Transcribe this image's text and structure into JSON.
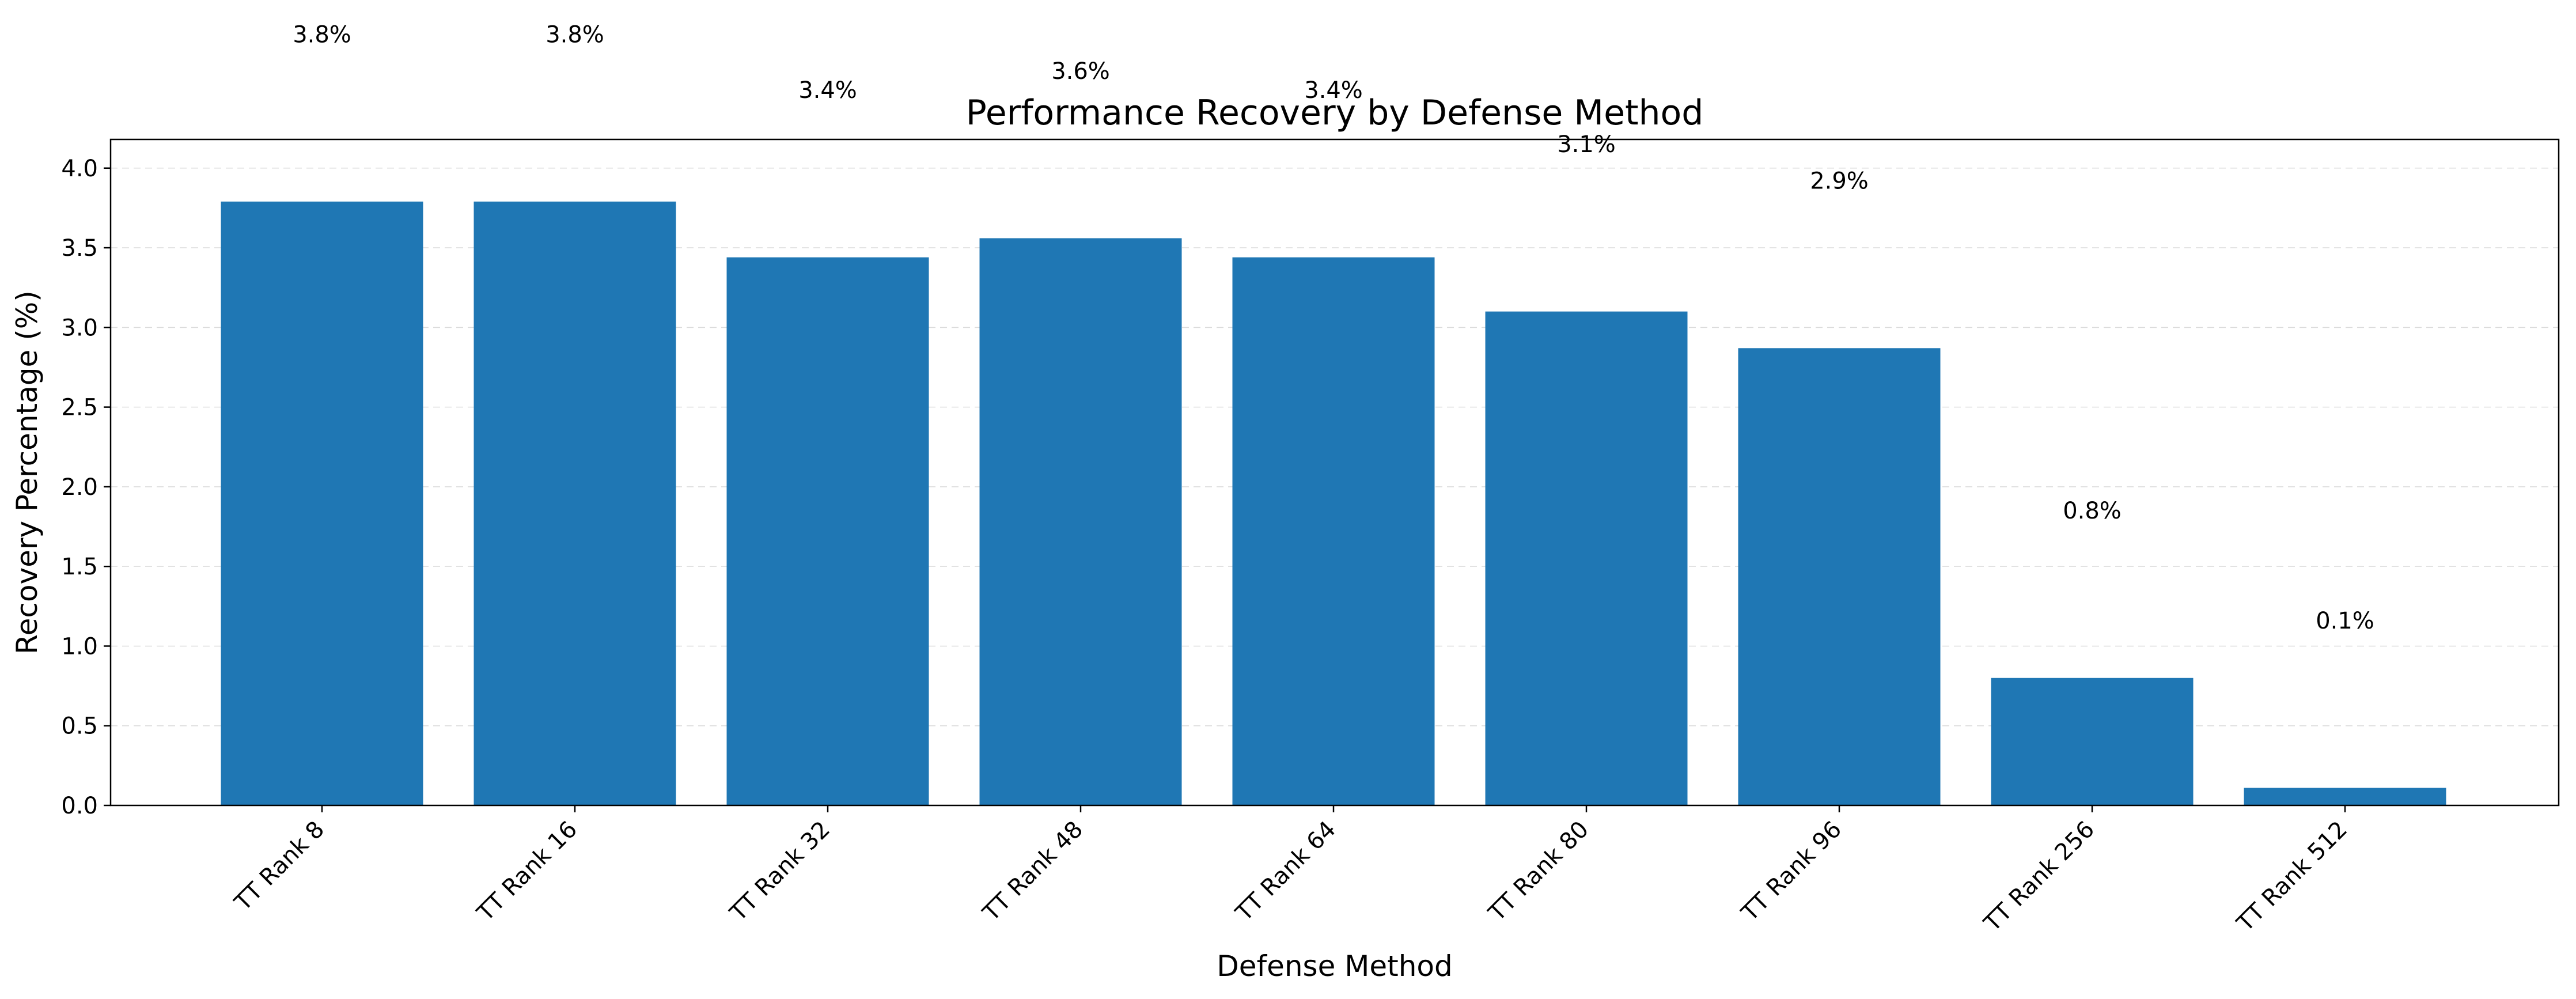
{
  "chart_data": {
    "type": "bar",
    "title": "Performance Recovery by Defense Method",
    "xlabel": "Defense Method",
    "ylabel": "Recovery Percentage (%)",
    "categories": [
      "TT Rank 8",
      "TT Rank 16",
      "TT Rank 32",
      "TT Rank 48",
      "TT Rank 64",
      "TT Rank 80",
      "TT Rank 96",
      "TT Rank 256",
      "TT Rank 512"
    ],
    "values": [
      3.79,
      3.79,
      3.44,
      3.56,
      3.44,
      3.1,
      2.87,
      0.8,
      0.11
    ],
    "value_labels": [
      "3.8%",
      "3.8%",
      "3.4%",
      "3.6%",
      "3.4%",
      "3.1%",
      "2.9%",
      "0.8%",
      "0.1%"
    ],
    "label_offsets": [
      0.0,
      0.0,
      0.0,
      0.0,
      0.0,
      0.0,
      0.0,
      0.0,
      0.0
    ],
    "yticks": [
      "0.0",
      "0.5",
      "1.0",
      "1.5",
      "2.0",
      "2.5",
      "3.0",
      "3.5",
      "4.0"
    ],
    "ylim": [
      0,
      4.18
    ],
    "grid": "y",
    "bar_color": "#1f77b4"
  }
}
